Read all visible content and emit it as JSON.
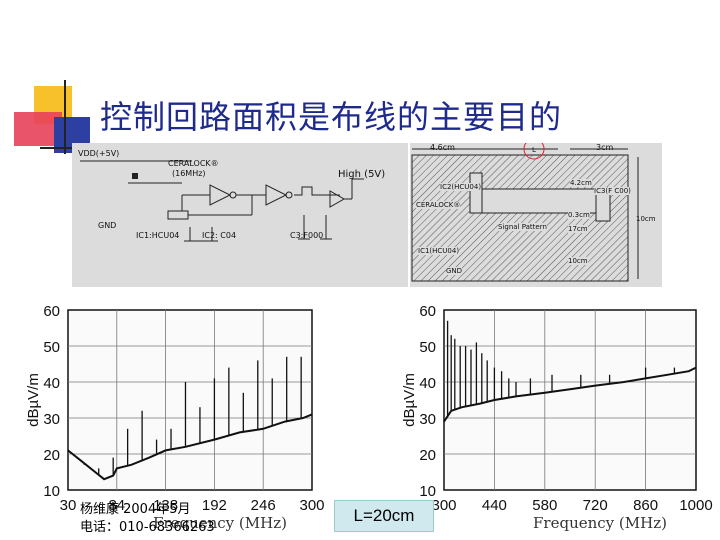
{
  "slide": {
    "title": "控制回路面积是布线的主要目的",
    "caption": "L=20cm",
    "footer_author": "杨维康 2004年5月",
    "footer_phone": "电话：010-68366263",
    "accent_colors": {
      "yellow": "#f6c12b",
      "red": "#e8415b",
      "blue": "#2d3fa0",
      "title": "#1e2a8c"
    }
  },
  "schematic": {
    "vdd": "VDD(+5V)",
    "osc": "CERALOCK®",
    "osc_freq": "(16MHz)",
    "gnd": "GND",
    "ic1": "IC1:HCU04",
    "ic2": "IC2: C04",
    "ic3": "C3:F000",
    "high": "High (5V)"
  },
  "layout": {
    "dim_a": "4.6cm",
    "dim_b": "3cm",
    "dim_l": "L",
    "ic2": "IC2(HCU04)",
    "ic3": "IC3(F C00)",
    "osc": "CERALOCK®",
    "signal": "Signal Pattern",
    "ic1": "IC1(HCU04)",
    "gnd": "GND",
    "d1": "4.2cm",
    "d2": "0.3cm",
    "d3": "17cm",
    "d4": "10cm",
    "d5": "10cm"
  },
  "chart_data": [
    {
      "type": "line",
      "title": "",
      "xlabel": "Frequency (MHz)",
      "ylabel": "dBµV/m",
      "xlim": [
        30,
        300
      ],
      "ylim": [
        10,
        60
      ],
      "xticks": [
        "30",
        "84",
        "138",
        "192",
        "246",
        "300"
      ],
      "yticks": [
        "10",
        "20",
        "30",
        "40",
        "50",
        "60"
      ],
      "x": [
        30,
        45,
        60,
        70,
        80,
        84,
        100,
        120,
        138,
        160,
        192,
        220,
        246,
        270,
        290,
        300
      ],
      "y": [
        21,
        18,
        15,
        13,
        14,
        16,
        17,
        19,
        21,
        22,
        24,
        26,
        27,
        29,
        30,
        31
      ],
      "spikes": [
        {
          "x": 48,
          "y": 17
        },
        {
          "x": 64,
          "y": 16
        },
        {
          "x": 80,
          "y": 19
        },
        {
          "x": 96,
          "y": 27
        },
        {
          "x": 112,
          "y": 32
        },
        {
          "x": 128,
          "y": 24
        },
        {
          "x": 144,
          "y": 27
        },
        {
          "x": 160,
          "y": 40
        },
        {
          "x": 176,
          "y": 33
        },
        {
          "x": 192,
          "y": 41
        },
        {
          "x": 208,
          "y": 44
        },
        {
          "x": 224,
          "y": 37
        },
        {
          "x": 240,
          "y": 46
        },
        {
          "x": 256,
          "y": 41
        },
        {
          "x": 272,
          "y": 47
        },
        {
          "x": 288,
          "y": 47
        }
      ]
    },
    {
      "type": "line",
      "title": "",
      "xlabel": "Frequency (MHz)",
      "ylabel": "dBµV/m",
      "xlim": [
        300,
        1000
      ],
      "ylim": [
        10,
        60
      ],
      "xticks": [
        "300",
        "440",
        "580",
        "720",
        "860",
        "1000"
      ],
      "yticks": [
        "10",
        "20",
        "30",
        "40",
        "50",
        "60"
      ],
      "x": [
        300,
        320,
        350,
        400,
        440,
        500,
        580,
        650,
        720,
        800,
        860,
        920,
        980,
        1000
      ],
      "y": [
        29,
        32,
        33,
        34,
        35,
        36,
        37,
        38,
        39,
        40,
        41,
        42,
        43,
        44
      ],
      "spikes": [
        {
          "x": 310,
          "y": 57
        },
        {
          "x": 320,
          "y": 53
        },
        {
          "x": 330,
          "y": 52
        },
        {
          "x": 345,
          "y": 50
        },
        {
          "x": 360,
          "y": 50
        },
        {
          "x": 375,
          "y": 49
        },
        {
          "x": 390,
          "y": 51
        },
        {
          "x": 405,
          "y": 48
        },
        {
          "x": 420,
          "y": 46
        },
        {
          "x": 440,
          "y": 44
        },
        {
          "x": 460,
          "y": 43
        },
        {
          "x": 480,
          "y": 41
        },
        {
          "x": 500,
          "y": 40
        },
        {
          "x": 540,
          "y": 41
        },
        {
          "x": 600,
          "y": 42
        },
        {
          "x": 680,
          "y": 42
        },
        {
          "x": 760,
          "y": 42
        },
        {
          "x": 860,
          "y": 44
        },
        {
          "x": 940,
          "y": 44
        }
      ]
    }
  ]
}
